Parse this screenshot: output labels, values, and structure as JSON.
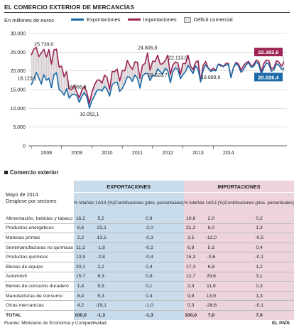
{
  "header": {
    "title": "EL COMERCIO EXTERIOR DE MERCANCÍAS",
    "units": "En millones de euros"
  },
  "legend": {
    "exports": "Exportaciones",
    "imports": "Importaciones",
    "deficit": "Déficit comercial"
  },
  "colors": {
    "exports": "#1a6aa8",
    "imports": "#9c2455",
    "deficit_fill": "#e5dfe1",
    "exports_col": "#c9dcec",
    "imports_col": "#ecd3dc"
  },
  "chart_data": {
    "type": "line",
    "xlabel": "",
    "ylabel": "",
    "ylim": [
      0,
      30000
    ],
    "yticks": [
      "0",
      "5.000",
      "10.000",
      "15.000",
      "20.000",
      "25.000",
      "30.000"
    ],
    "xticks": [
      "2008",
      "2009",
      "2010",
      "2011",
      "2012",
      "2013",
      "2014"
    ],
    "grid": true,
    "series": [
      {
        "name": "Exportaciones",
        "values": [
          16200,
          17800,
          19600,
          18123.1,
          16500,
          19000,
          17500,
          18000,
          15500,
          19000,
          19500,
          15000,
          14500,
          13500,
          15200,
          12700,
          13600,
          13800,
          13400,
          11600,
          13200,
          14200,
          13000,
          10052.1,
          12000,
          13300,
          14800,
          15000,
          14600,
          15900,
          15000,
          13300,
          16200,
          16900,
          17000,
          14500,
          15300,
          16600,
          18400,
          18300,
          17200,
          18900,
          18100,
          15400,
          18600,
          19300,
          19300,
          17400,
          18800,
          18700,
          20528.7,
          19800,
          19100,
          20700,
          20100,
          16800,
          19700,
          20800,
          20400,
          17900,
          19000,
          19800,
          21500,
          20400,
          19300,
          21300,
          20400,
          17000,
          20200,
          21600,
          20700,
          19899.6,
          20100,
          20000,
          21800,
          21300,
          21300,
          21500,
          21800,
          18200,
          20900,
          22000,
          21200,
          19600,
          20400,
          21600,
          22200,
          20900,
          21200,
          22400,
          21700,
          19200,
          20800,
          22100,
          21800,
          19900,
          20300,
          21900,
          21500,
          20450,
          20626.4
        ]
      },
      {
        "name": "Importaciones",
        "values": [
          24200,
          25800,
          26300,
          23800,
          24800,
          25739,
          23700,
          25700,
          21800,
          25600,
          25800,
          21000,
          21300,
          18400,
          19800,
          15200,
          15000,
          16200,
          14368.8,
          12800,
          14800,
          15900,
          14300,
          11300,
          14300,
          16200,
          17500,
          17600,
          16700,
          18900,
          18200,
          15000,
          19800,
          19800,
          20500,
          17300,
          20100,
          20000,
          22800,
          21400,
          20400,
          22400,
          22300,
          18000,
          21500,
          22000,
          24806.8,
          20100,
          22600,
          22500,
          24200,
          21800,
          21900,
          22700,
          24200,
          19000,
          21600,
          22400,
          22113,
          19000,
          22000,
          21900,
          24200,
          21300,
          20300,
          22300,
          22700,
          17300,
          21500,
          22500,
          20800,
          20100,
          20700,
          20200,
          21800,
          21600,
          21100,
          22000,
          22000,
          18200,
          21000,
          22300,
          21800,
          20200,
          21400,
          22200,
          22500,
          21300,
          21700,
          22900,
          22500,
          19800,
          22000,
          22900,
          22700,
          20500,
          20900,
          22700,
          22300,
          21300,
          22382.6
        ]
      }
    ],
    "annotations": [
      {
        "label": "25.739,0",
        "value": 25739,
        "year": 2008
      },
      {
        "label": "18.123,1",
        "value": 18123.1,
        "year": 2008
      },
      {
        "label": "14.368,8",
        "value": 14368.8,
        "year": 2009
      },
      {
        "label": "10.052,1",
        "value": 10052.1,
        "year": 2009
      },
      {
        "label": "24.806,8",
        "value": 24806.8,
        "year": 2011
      },
      {
        "label": "20.528,7",
        "value": 20528.7,
        "year": 2011
      },
      {
        "label": "22.113,0",
        "value": 22113,
        "year": 2012
      },
      {
        "label": "19.899,6",
        "value": 19899.6,
        "year": 2012
      },
      {
        "label": "22.382,6",
        "value": 22382.6,
        "year": 2014,
        "boxed": "imports"
      },
      {
        "label": "20.626,4",
        "value": 20626.4,
        "year": 2014,
        "boxed": "exports"
      }
    ]
  },
  "table": {
    "subtitle": "Comercio exterior",
    "title_line1": "Mayo de 2014.",
    "title_line2": "Desglose por sectores",
    "group_exports": "EXPORTACIONES",
    "group_imports": "IMPORTACIONES",
    "col_share": "% total",
    "col_var": "Var 14/13 (%)",
    "col_contrib": "Contribuciones (ptos. porcentuales)",
    "rows": [
      {
        "label": "Alimentación, bebidas y tabaco",
        "e": [
          "16,2",
          "5,2",
          "0,8"
        ],
        "i": [
          "10,6",
          "2,0",
          "0,2"
        ]
      },
      {
        "label": "Productos energéticos",
        "e": [
          "6,6",
          "-23,1",
          "-2,0"
        ],
        "i": [
          "21,2",
          "6,0",
          "1,3"
        ]
      },
      {
        "label": "Materias primas",
        "e": [
          "2,2",
          "-13,5",
          "-0,3"
        ],
        "i": [
          "3,5",
          "-12,0",
          "-0,5"
        ]
      },
      {
        "label": "Semimanufacturas no químicas",
        "e": [
          "11,1",
          "-1,8",
          "-0,2"
        ],
        "i": [
          "6,9",
          "5,1",
          "0,4"
        ]
      },
      {
        "label": "Productos químicos",
        "e": [
          "13,9",
          "-2,8",
          "-0,4"
        ],
        "i": [
          "15,3",
          "-0,6",
          "-0,1"
        ]
      },
      {
        "label": "Bienes de equipo",
        "e": [
          "20,1",
          "2,2",
          "0,4"
        ],
        "i": [
          "17,3",
          "6,8",
          "1,2"
        ]
      },
      {
        "label": "Automóvil",
        "e": [
          "15,7",
          "6,3",
          "0,9"
        ],
        "i": [
          "12,7",
          "29,6",
          "3,1"
        ]
      },
      {
        "label": "Bienes de consumo duradero",
        "e": [
          "1,4",
          "5,9",
          "0,1"
        ],
        "i": [
          "2,4",
          "11,9",
          "0,3"
        ]
      },
      {
        "label": "Manufacturas de consumo",
        "e": [
          "8,4",
          "5,3",
          "0,4"
        ],
        "i": [
          "9,9",
          "13,9",
          "1,3"
        ]
      },
      {
        "label": "Otras mercancías",
        "e": [
          "4,2",
          "-19,1",
          "-1,0"
        ],
        "i": [
          "0,3",
          "-28,6",
          "-0,1"
        ]
      }
    ],
    "total": {
      "label": "TOTAL",
      "e": [
        "100,0",
        "-1,3",
        "-1,3"
      ],
      "i": [
        "100,0",
        "7,0",
        "7,0"
      ]
    }
  },
  "footer": {
    "source": "Fuente: Ministerio de Economía y Competitividad.",
    "brand": "EL PAÍS"
  }
}
